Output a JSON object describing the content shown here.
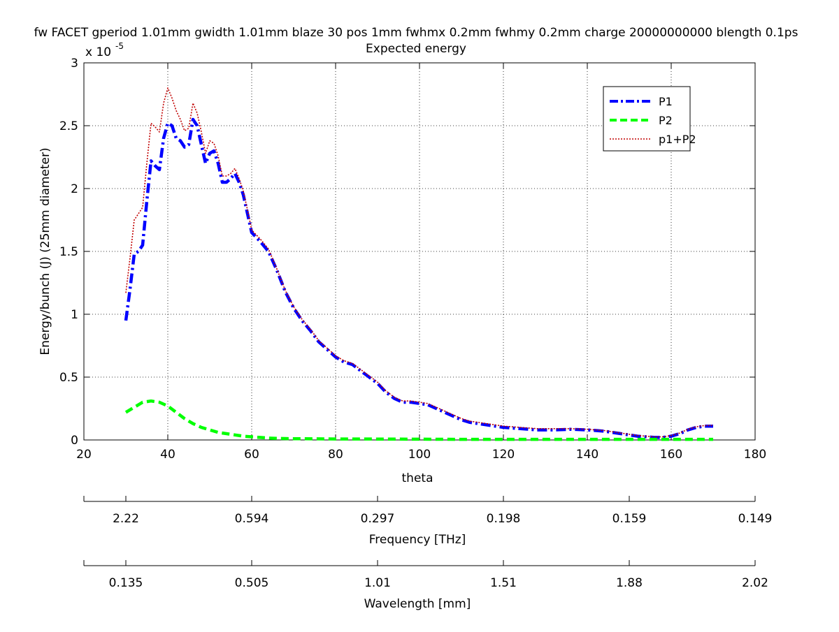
{
  "figure": {
    "title": "fw FACET gperiod 1.01mm gwidth 1.01mm blaze 30 pos 1mm fwhmx 0.2mm fwhmy 0.2mm charge 20000000000 blength 0.1ps",
    "subtitle": "Expected energy",
    "y_exponent_base": "x 10",
    "y_exponent_power": "-5"
  },
  "chart_data": {
    "type": "line",
    "title": "fw FACET gperiod 1.01mm gwidth 1.01mm blaze 30 pos 1mm fwhmx 0.2mm fwhmy 0.2mm charge 20000000000 blength 0.1ps",
    "subtitle": "Expected energy",
    "xlabel": "theta",
    "ylabel": "Energy/bunch (J) (25mm diameter)",
    "xlim": [
      20,
      180
    ],
    "ylim": [
      0,
      3
    ],
    "y_scale_factor": "1e-5",
    "grid": true,
    "grid_style": "dotted",
    "legend_position": "top-right",
    "x_ticks": [
      20,
      40,
      60,
      80,
      100,
      120,
      140,
      160,
      180
    ],
    "x_tick_labels": [
      "20",
      "40",
      "60",
      "80",
      "100",
      "120",
      "140",
      "160",
      "180"
    ],
    "y_ticks": [
      0,
      0.5,
      1,
      1.5,
      2,
      2.5,
      3
    ],
    "y_tick_labels": [
      "0",
      "0.5",
      "1",
      "1.5",
      "2",
      "2.5",
      "3"
    ],
    "secondary_axes": [
      {
        "label": "Frequency [THz]",
        "tick_positions_theta": [
          30,
          60,
          90,
          120,
          150,
          180
        ],
        "tick_labels": [
          "2.22",
          "0.594",
          "0.297",
          "0.198",
          "0.159",
          "0.149"
        ]
      },
      {
        "label": "Wavelength [mm]",
        "tick_positions_theta": [
          30,
          60,
          90,
          120,
          150,
          180
        ],
        "tick_labels": [
          "0.135",
          "0.505",
          "1.01",
          "1.51",
          "1.88",
          "2.02"
        ]
      }
    ],
    "series": [
      {
        "name": "P1",
        "color": "#0000ff",
        "style": "dashdot",
        "x": [
          30,
          31,
          32,
          33,
          34,
          35,
          36,
          37,
          38,
          39,
          40,
          41,
          42,
          43,
          44,
          45,
          46,
          47,
          48,
          49,
          50,
          51,
          52,
          53,
          54,
          55,
          56,
          57,
          58,
          59,
          60,
          62,
          64,
          66,
          68,
          70,
          72,
          74,
          76,
          78,
          80,
          82,
          84,
          86,
          88,
          90,
          92,
          94,
          96,
          98,
          100,
          102,
          104,
          106,
          108,
          110,
          112,
          114,
          116,
          118,
          120,
          124,
          128,
          132,
          136,
          140,
          144,
          148,
          152,
          156,
          158,
          160,
          162,
          164,
          166,
          168,
          170
        ],
        "y": [
          0.95,
          1.2,
          1.48,
          1.5,
          1.55,
          1.9,
          2.22,
          2.18,
          2.15,
          2.4,
          2.52,
          2.5,
          2.4,
          2.38,
          2.33,
          2.35,
          2.55,
          2.5,
          2.35,
          2.2,
          2.28,
          2.3,
          2.2,
          2.05,
          2.05,
          2.08,
          2.12,
          2.05,
          1.95,
          1.8,
          1.65,
          1.58,
          1.5,
          1.35,
          1.18,
          1.05,
          0.95,
          0.87,
          0.78,
          0.72,
          0.66,
          0.62,
          0.6,
          0.55,
          0.5,
          0.45,
          0.38,
          0.33,
          0.3,
          0.3,
          0.29,
          0.28,
          0.25,
          0.22,
          0.19,
          0.16,
          0.14,
          0.13,
          0.12,
          0.11,
          0.1,
          0.09,
          0.08,
          0.08,
          0.085,
          0.08,
          0.07,
          0.05,
          0.03,
          0.02,
          0.02,
          0.03,
          0.05,
          0.08,
          0.1,
          0.11,
          0.11
        ]
      },
      {
        "name": "P2",
        "color": "#00ff00",
        "style": "dashed",
        "x": [
          30,
          32,
          34,
          36,
          38,
          40,
          42,
          44,
          46,
          48,
          50,
          52,
          54,
          56,
          58,
          60,
          62,
          64,
          66,
          70,
          80,
          90,
          100,
          110,
          120,
          130,
          140,
          150,
          160,
          170
        ],
        "y": [
          0.22,
          0.26,
          0.3,
          0.31,
          0.3,
          0.27,
          0.22,
          0.17,
          0.13,
          0.1,
          0.08,
          0.06,
          0.05,
          0.04,
          0.03,
          0.025,
          0.02,
          0.015,
          0.012,
          0.01,
          0.008,
          0.007,
          0.006,
          0.005,
          0.005,
          0.005,
          0.005,
          0.005,
          0.005,
          0.005
        ]
      },
      {
        "name": "p1+P2",
        "color": "#c00000",
        "style": "dotted",
        "x": [
          30,
          31,
          32,
          33,
          34,
          35,
          36,
          37,
          38,
          39,
          40,
          41,
          42,
          43,
          44,
          45,
          46,
          47,
          48,
          49,
          50,
          51,
          52,
          53,
          54,
          55,
          56,
          57,
          58,
          59,
          60,
          62,
          64,
          66,
          68,
          70,
          72,
          74,
          76,
          78,
          80,
          82,
          84,
          86,
          88,
          90,
          92,
          94,
          96,
          98,
          100,
          102,
          104,
          106,
          108,
          110,
          112,
          114,
          116,
          118,
          120,
          124,
          128,
          132,
          136,
          140,
          144,
          148,
          152,
          156,
          158,
          160,
          162,
          164,
          166,
          168,
          170
        ],
        "y": [
          1.17,
          1.45,
          1.75,
          1.8,
          1.85,
          2.2,
          2.52,
          2.49,
          2.45,
          2.68,
          2.8,
          2.72,
          2.62,
          2.55,
          2.46,
          2.48,
          2.68,
          2.6,
          2.45,
          2.28,
          2.38,
          2.36,
          2.26,
          2.1,
          2.1,
          2.12,
          2.16,
          2.08,
          1.98,
          1.83,
          1.67,
          1.6,
          1.52,
          1.36,
          1.19,
          1.06,
          0.96,
          0.88,
          0.79,
          0.73,
          0.67,
          0.63,
          0.61,
          0.56,
          0.51,
          0.46,
          0.39,
          0.34,
          0.31,
          0.31,
          0.3,
          0.29,
          0.26,
          0.23,
          0.2,
          0.17,
          0.15,
          0.14,
          0.13,
          0.12,
          0.11,
          0.1,
          0.09,
          0.09,
          0.09,
          0.085,
          0.075,
          0.055,
          0.035,
          0.025,
          0.025,
          0.035,
          0.055,
          0.085,
          0.105,
          0.115,
          0.115
        ]
      }
    ]
  }
}
